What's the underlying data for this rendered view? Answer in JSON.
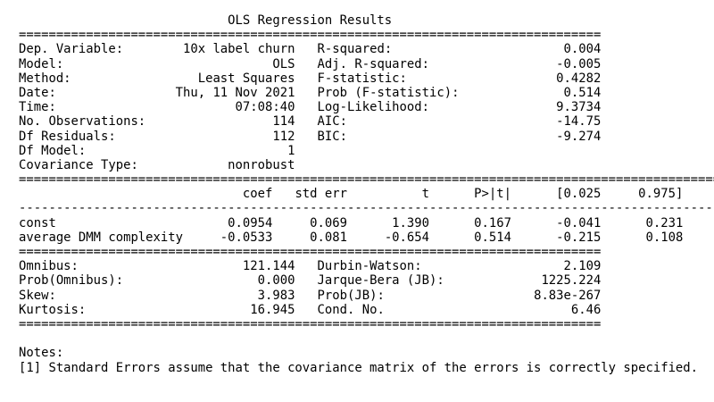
{
  "title": "OLS Regression Results",
  "rules": {
    "double_short": "==============================================================================",
    "double_long": "==============================================================================================",
    "single_long": "----------------------------------------------------------------------------------------------"
  },
  "model_info": {
    "left": [
      {
        "label": "Dep. Variable:",
        "value": "10x label churn"
      },
      {
        "label": "Model:",
        "value": "OLS"
      },
      {
        "label": "Method:",
        "value": "Least Squares"
      },
      {
        "label": "Date:",
        "value": "Thu, 11 Nov 2021"
      },
      {
        "label": "Time:",
        "value": "07:08:40"
      },
      {
        "label": "No. Observations:",
        "value": "114"
      },
      {
        "label": "Df Residuals:",
        "value": "112"
      },
      {
        "label": "Df Model:",
        "value": "1"
      },
      {
        "label": "Covariance Type:",
        "value": "nonrobust"
      }
    ],
    "right": [
      {
        "label": "R-squared:",
        "value": "0.004"
      },
      {
        "label": "Adj. R-squared:",
        "value": "-0.005"
      },
      {
        "label": "F-statistic:",
        "value": "0.4282"
      },
      {
        "label": "Prob (F-statistic):",
        "value": "0.514"
      },
      {
        "label": "Log-Likelihood:",
        "value": "9.3734"
      },
      {
        "label": "AIC:",
        "value": "-14.75"
      },
      {
        "label": "BIC:",
        "value": "-9.274"
      }
    ]
  },
  "coef_table": {
    "headers": [
      "coef",
      "std err",
      "t",
      "P>|t|",
      "[0.025",
      "0.975]"
    ],
    "rows": [
      {
        "name": "const",
        "values": [
          "0.0954",
          "0.069",
          "1.390",
          "0.167",
          "-0.041",
          "0.231"
        ]
      },
      {
        "name": "average DMM complexity",
        "values": [
          "-0.0533",
          "0.081",
          "-0.654",
          "0.514",
          "-0.215",
          "0.108"
        ]
      }
    ]
  },
  "diagnostics": {
    "left": [
      {
        "label": "Omnibus:",
        "value": "121.144"
      },
      {
        "label": "Prob(Omnibus):",
        "value": "0.000"
      },
      {
        "label": "Skew:",
        "value": "3.983"
      },
      {
        "label": "Kurtosis:",
        "value": "16.945"
      }
    ],
    "right": [
      {
        "label": "Durbin-Watson:",
        "value": "2.109"
      },
      {
        "label": "Jarque-Bera (JB):",
        "value": "1225.224"
      },
      {
        "label": "Prob(JB):",
        "value": "8.83e-267"
      },
      {
        "label": "Cond. No.",
        "value": "6.46"
      }
    ]
  },
  "notes": {
    "heading": "Notes:",
    "items": [
      "[1] Standard Errors assume that the covariance matrix of the errors is correctly specified."
    ]
  }
}
